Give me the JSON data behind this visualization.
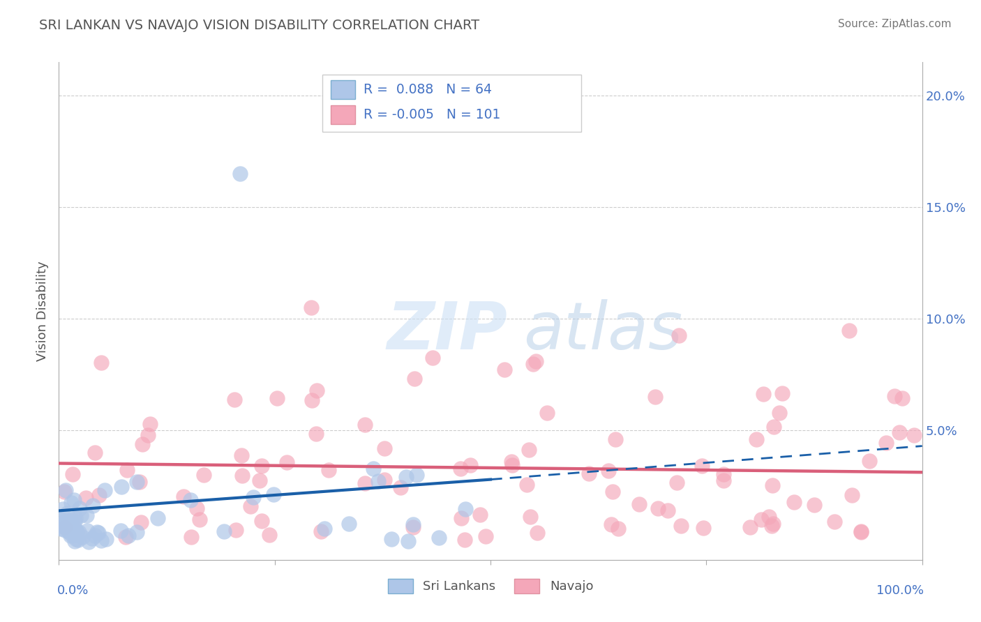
{
  "title": "SRI LANKAN VS NAVAJO VISION DISABILITY CORRELATION CHART",
  "source_text": "Source: ZipAtlas.com",
  "ylabel": "Vision Disability",
  "xlim": [
    0.0,
    1.0
  ],
  "ylim": [
    -0.008,
    0.215
  ],
  "sri_lankan_R": 0.088,
  "sri_lankan_N": 64,
  "navajo_R": -0.005,
  "navajo_N": 101,
  "sri_lankan_color": "#aec6e8",
  "navajo_color": "#f4a7b9",
  "sri_lankan_edge_color": "#6699cc",
  "navajo_edge_color": "#e07090",
  "sri_lankan_line_color": "#1a5fa8",
  "navajo_line_color": "#d95f7a",
  "watermark_zip": "#d0e8f8",
  "watermark_atlas": "#c0d8e8",
  "background_color": "#ffffff",
  "grid_color": "#cccccc",
  "title_color": "#555555",
  "axis_label_color": "#4472c4",
  "legend_text_color": "#4472c4"
}
